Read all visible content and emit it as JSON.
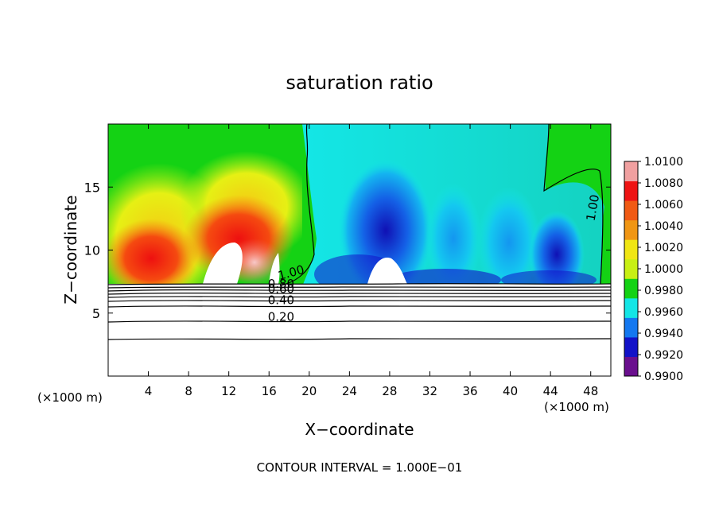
{
  "chart_data": {
    "type": "heatmap",
    "title": "saturation ratio",
    "xlabel": "X−coordinate",
    "ylabel": "Z−coordinate",
    "x_unit_left": "(×1000 m)",
    "x_unit_right": "(×1000 m)",
    "xlim": [
      0,
      50
    ],
    "ylim": [
      0,
      20
    ],
    "x_ticks": [
      4,
      8,
      12,
      16,
      20,
      24,
      28,
      32,
      36,
      40,
      44,
      48
    ],
    "y_ticks": [
      5,
      10,
      15
    ],
    "footer": "CONTOUR INTERVAL = 1.000E−01",
    "colorbar": {
      "ticks": [
        "1.0100",
        "1.0080",
        "1.0060",
        "1.0040",
        "1.0020",
        "1.0000",
        "0.9980",
        "0.9960",
        "0.9940",
        "0.9920",
        "0.9900"
      ],
      "range": [
        0.99,
        1.01
      ],
      "colors": [
        "#6a0f8e",
        "#1212c8",
        "#1478f0",
        "#14e6e6",
        "#14d214",
        "#c8f014",
        "#f0e614",
        "#f09614",
        "#f05a14",
        "#ee1414",
        "#f0a0a0"
      ]
    },
    "contour_labels": [
      {
        "text": "1.00",
        "x": 18.3,
        "z": 7.9
      },
      {
        "text": "0.80",
        "x": 17.2,
        "z": 7.0
      },
      {
        "text": "0.60",
        "x": 17.2,
        "z": 6.6
      },
      {
        "text": "0.40",
        "x": 17.2,
        "z": 5.7
      },
      {
        "text": "0.20",
        "x": 17.2,
        "z": 4.4
      },
      {
        "text": "1.00",
        "x": 48.6,
        "z": 13.3
      }
    ]
  }
}
